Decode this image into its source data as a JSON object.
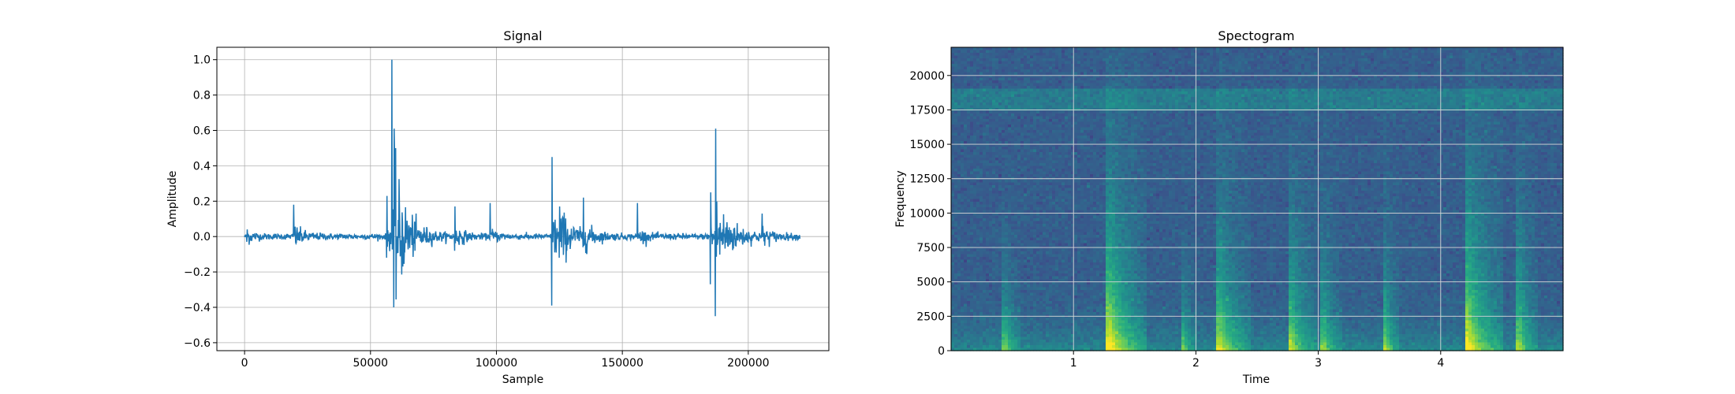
{
  "chart_data": [
    {
      "type": "line",
      "title": "Signal",
      "xlabel": "Sample",
      "ylabel": "Amplitude",
      "xlim": [
        -11000,
        232000
      ],
      "ylim": [
        -0.645,
        1.07
      ],
      "grid": true,
      "color": "#1f77b4",
      "xticks": [
        0,
        50000,
        100000,
        150000,
        200000
      ],
      "xtick_labels": [
        "0",
        "50000",
        "100000",
        "150000",
        "200000"
      ],
      "yticks": [
        -0.6,
        -0.4,
        -0.2,
        0.0,
        0.2,
        0.4,
        0.6,
        0.8,
        1.0
      ],
      "ytick_labels": [
        "−0.6",
        "−0.4",
        "−0.2",
        "0.0",
        "0.2",
        "0.4",
        "0.6",
        "0.8",
        "1.0"
      ],
      "n_samples": 220500,
      "noise_level": 0.008,
      "events": [
        {
          "x": 1000,
          "pos": 0.04,
          "neg": -0.03,
          "tail": 0.02,
          "decay": 2500
        },
        {
          "x": 19500,
          "pos": 0.18,
          "neg": -0.2,
          "tail": 0.03,
          "decay": 4000
        },
        {
          "x": 56500,
          "pos": 0.23,
          "neg": -0.12,
          "tail": 0.04,
          "decay": 3000
        },
        {
          "x": 58500,
          "pos": 1.0,
          "neg": -0.56,
          "tail": 0.12,
          "decay": 6000
        },
        {
          "x": 59300,
          "pos": 0.61,
          "neg": -0.4,
          "tail": 0.08,
          "decay": 5000
        },
        {
          "x": 83500,
          "pos": 0.17,
          "neg": -0.08,
          "tail": 0.03,
          "decay": 3000
        },
        {
          "x": 97500,
          "pos": 0.19,
          "neg": -0.03,
          "tail": 0.02,
          "decay": 2500
        },
        {
          "x": 122000,
          "pos": 0.45,
          "neg": -0.39,
          "tail": 0.07,
          "decay": 6000
        },
        {
          "x": 125000,
          "pos": 0.17,
          "neg": -0.12,
          "tail": 0.04,
          "decay": 4000
        },
        {
          "x": 134500,
          "pos": 0.22,
          "neg": -0.06,
          "tail": 0.03,
          "decay": 4000
        },
        {
          "x": 156000,
          "pos": 0.19,
          "neg": -0.1,
          "tail": 0.02,
          "decay": 3000
        },
        {
          "x": 185000,
          "pos": 0.25,
          "neg": -0.27,
          "tail": 0.05,
          "decay": 3000
        },
        {
          "x": 187000,
          "pos": 0.61,
          "neg": -0.45,
          "tail": 0.09,
          "decay": 7000
        },
        {
          "x": 205500,
          "pos": 0.13,
          "neg": -0.06,
          "tail": 0.02,
          "decay": 3000
        }
      ]
    },
    {
      "type": "heatmap",
      "title": "Spectogram",
      "xlabel": "Time",
      "ylabel": "Frequency",
      "xlim": [
        0,
        5.0
      ],
      "ylim": [
        0,
        22050
      ],
      "grid": true,
      "colormap": "viridis",
      "xticks": [
        1,
        2,
        3,
        4
      ],
      "xtick_labels": [
        "1",
        "2",
        "3",
        "4"
      ],
      "yticks": [
        0,
        2500,
        5000,
        7500,
        10000,
        12500,
        15000,
        17500,
        20000
      ],
      "ytick_labels": [
        "0",
        "2500",
        "5000",
        "7500",
        "10000",
        "12500",
        "15000",
        "17500",
        "20000"
      ],
      "background_level": 0.3,
      "band": {
        "low": 17500,
        "high": 19000,
        "level": 0.42
      },
      "events": [
        {
          "t": 0.45,
          "width": 0.12,
          "strength": 0.55,
          "top": 9000
        },
        {
          "t": 1.3,
          "width": 0.3,
          "strength": 1.0,
          "top": 18000
        },
        {
          "t": 1.9,
          "width": 0.1,
          "strength": 0.5,
          "top": 9000
        },
        {
          "t": 2.2,
          "width": 0.25,
          "strength": 0.8,
          "top": 15000
        },
        {
          "t": 2.78,
          "width": 0.2,
          "strength": 0.75,
          "top": 15000
        },
        {
          "t": 3.05,
          "width": 0.15,
          "strength": 0.6,
          "top": 12000
        },
        {
          "t": 3.55,
          "width": 0.12,
          "strength": 0.65,
          "top": 12000
        },
        {
          "t": 4.22,
          "width": 0.3,
          "strength": 1.0,
          "top": 18000
        },
        {
          "t": 4.65,
          "width": 0.15,
          "strength": 0.65,
          "top": 15000
        }
      ]
    }
  ]
}
